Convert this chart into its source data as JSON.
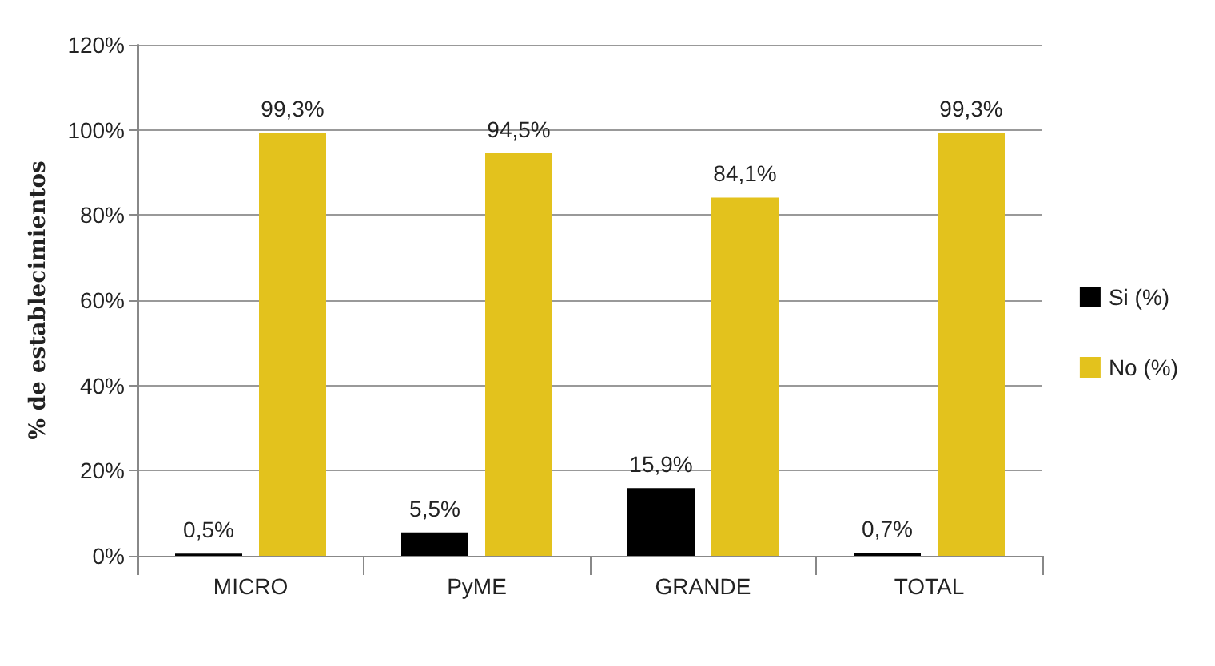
{
  "chart_data": {
    "type": "bar",
    "ylabel": "% de establecimientos",
    "categories": [
      "MICRO",
      "PyME",
      "GRANDE",
      "TOTAL"
    ],
    "series": [
      {
        "name": "Si (%)",
        "color": "#000000",
        "values": [
          0.5,
          5.5,
          15.9,
          0.7
        ],
        "value_labels": [
          "0,5%",
          "5,5%",
          "15,9%",
          "0,7%"
        ]
      },
      {
        "name": "No (%)",
        "color": "#e3c21d",
        "values": [
          99.3,
          94.5,
          84.1,
          99.3
        ],
        "value_labels": [
          "99,3%",
          "94,5%",
          "84,1%",
          "99,3%"
        ]
      }
    ],
    "ylim": [
      0,
      120
    ],
    "yticks": [
      {
        "value": 0,
        "label": "0%"
      },
      {
        "value": 20,
        "label": "20%"
      },
      {
        "value": 40,
        "label": "40%"
      },
      {
        "value": 60,
        "label": "60%"
      },
      {
        "value": 80,
        "label": "80%"
      },
      {
        "value": 100,
        "label": "100%"
      },
      {
        "value": 120,
        "label": "120%"
      }
    ],
    "grid": "y",
    "legend": "right"
  }
}
